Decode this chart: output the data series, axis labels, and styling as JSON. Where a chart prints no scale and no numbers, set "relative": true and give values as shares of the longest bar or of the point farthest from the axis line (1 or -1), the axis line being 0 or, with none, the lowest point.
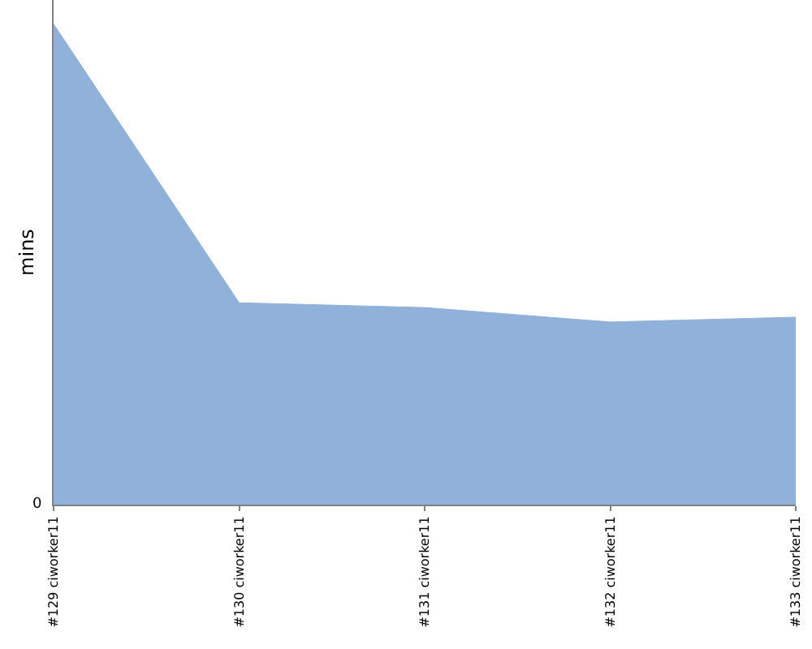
{
  "chart_data": {
    "type": "area",
    "ylabel": "mins",
    "relative": true,
    "categories": [
      "#129 ciworker11",
      "#130 ciworker11",
      "#131 ciworker11",
      "#132 ciworker11",
      "#133 ciworker11"
    ],
    "series": [
      {
        "color": "#8fb1da",
        "values": [
          1,
          0.42,
          0.41,
          0.38,
          0.39
        ]
      }
    ],
    "annotations": [
      "0"
    ]
  }
}
